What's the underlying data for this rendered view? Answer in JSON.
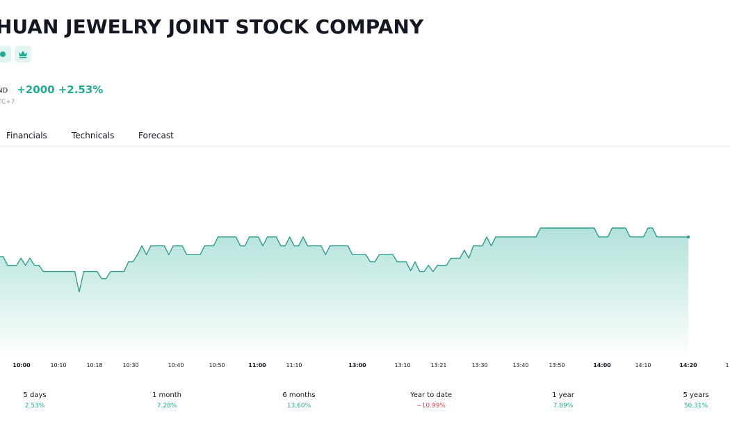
{
  "header": {
    "title": "HUAN JEWELRY JOINT STOCK COMPANY",
    "badges": [
      "status-dot-icon",
      "crown-icon"
    ],
    "currency_suffix": "ND",
    "change_abs": "+2000",
    "change_pct": "+2.53%",
    "timezone": "TC+7"
  },
  "tabs": [
    "Financials",
    "Technicals",
    "Forecast"
  ],
  "colors": {
    "accent": "#22ab94",
    "negative": "#f23645",
    "line": "#2a9d8f"
  },
  "chart_data": {
    "type": "area",
    "x_ticks": [
      "10:00",
      "10:10",
      "10:18",
      "10:30",
      "10:40",
      "10:50",
      "11:00",
      "11:10",
      "13:00",
      "13:10",
      "13:21",
      "13:30",
      "13:40",
      "13:50",
      "14:00",
      "14:10",
      "14:20",
      "1"
    ],
    "bold_ticks": [
      "10:00",
      "11:00",
      "13:00",
      "14:00",
      "14:20"
    ],
    "y_range": [
      0,
      14
    ],
    "values": [
      11,
      11,
      10,
      10,
      10,
      10.8,
      10,
      10.8,
      10,
      10,
      9.3,
      9.3,
      9.3,
      9.3,
      9.3,
      9.3,
      9.3,
      9.3,
      7,
      9.3,
      9.3,
      9.3,
      9.3,
      8.5,
      8.5,
      9.3,
      9.3,
      9.3,
      9.3,
      10.4,
      10.4,
      11.2,
      12.2,
      11.2,
      12.2,
      12.2,
      12.2,
      12.2,
      11.2,
      12.2,
      12.2,
      12.2,
      11.2,
      11.2,
      11.2,
      11.2,
      12.2,
      12.2,
      12.2,
      13.2,
      13.2,
      13.2,
      13.2,
      13.2,
      12.2,
      12.2,
      13.2,
      13.2,
      13.2,
      12.2,
      13.2,
      13.2,
      13.2,
      12.2,
      12.2,
      13.2,
      12.2,
      12.2,
      13.2,
      12.2,
      12.2,
      12.2,
      12.2,
      11.2,
      12.2,
      12.2,
      12.2,
      12.2,
      12.2,
      11.2,
      11.2,
      11.2,
      11.2,
      10.4,
      10.4,
      11.2,
      11.2,
      11.2,
      11.2,
      10.4,
      10.4,
      10.4,
      9.4,
      10.4,
      9.3,
      9.3,
      10,
      9.3,
      10,
      10,
      10,
      10.8,
      10.8,
      10.8,
      11.7,
      10.8,
      12.2,
      12.2,
      12.2,
      13.2,
      12.2,
      13.2,
      13.2,
      13.2,
      13.2,
      13.2,
      13.2,
      13.2,
      13.2,
      13.2,
      13.2,
      14.2,
      14.2,
      14.2,
      14.2,
      14.2,
      14.2,
      14.2,
      14.2,
      14.2,
      14.2,
      14.2,
      14.2,
      14.2,
      13.2,
      13.2,
      13.2,
      14.2,
      14.2,
      14.2,
      14.2,
      13.2,
      13.2,
      13.2,
      13.2,
      14.2,
      14.2,
      13.2,
      13.2,
      13.2,
      13.2,
      13.2,
      13.2,
      13.2,
      13.2
    ]
  },
  "performance": [
    {
      "label": "5 days",
      "value": "2.53%",
      "positive": true
    },
    {
      "label": "1 month",
      "value": "7.28%",
      "positive": true
    },
    {
      "label": "6 months",
      "value": "13.60%",
      "positive": true
    },
    {
      "label": "Year to date",
      "value": "−10.99%",
      "positive": false
    },
    {
      "label": "1 year",
      "value": "7.89%",
      "positive": true
    },
    {
      "label": "5 years",
      "value": "50.31%",
      "positive": true
    }
  ]
}
